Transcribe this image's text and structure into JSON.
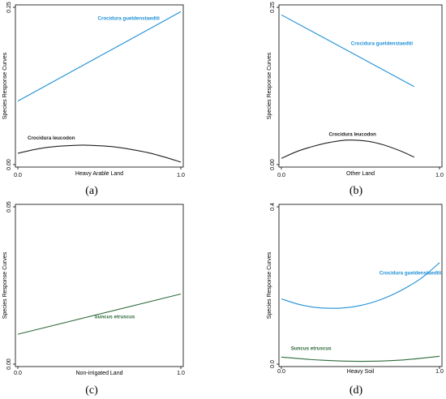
{
  "chart_data": [
    {
      "type": "line",
      "panel_label": "(a)",
      "xlabel": "Heavy Arable Land",
      "ylabel": "Species Response Curves",
      "xlim": [
        0,
        1
      ],
      "ylim": [
        0,
        0.25
      ],
      "x_ticks": [
        "0.0",
        "1.0"
      ],
      "y_ticks": [
        {
          "value": 0,
          "label": "0.00"
        },
        {
          "value": 0.25,
          "label": "0.25"
        }
      ],
      "series": [
        {
          "name": "Crocidura gueldenstaedtii",
          "color": "#1e90d6",
          "x": [
            0,
            0.5,
            1
          ],
          "y": [
            0.101,
            0.172,
            0.243
          ],
          "label_at": {
            "x": 0.49,
            "y": 0.23
          }
        },
        {
          "name": "Crocidura leucodon",
          "color": "#222222",
          "x": [
            0,
            0.1,
            0.2,
            0.3,
            0.4,
            0.5,
            0.6,
            0.7,
            0.8,
            0.9,
            1
          ],
          "y": [
            0.018,
            0.024,
            0.028,
            0.03,
            0.031,
            0.03,
            0.028,
            0.024,
            0.019,
            0.012,
            0.004
          ],
          "label_at": {
            "x": 0.06,
            "y": 0.04
          }
        }
      ]
    },
    {
      "type": "line",
      "panel_label": "(b)",
      "xlabel": "Other Land",
      "ylabel": "Species Response Curves",
      "xlim": [
        0,
        1
      ],
      "ylim": [
        0,
        0.25
      ],
      "x_ticks": [
        "0.0",
        "1.0"
      ],
      "y_ticks": [
        {
          "value": 0,
          "label": "0.00"
        },
        {
          "value": 0.25,
          "label": "0.25"
        }
      ],
      "series": [
        {
          "name": "Crocidura gueldenstaedtii",
          "color": "#1e90d6",
          "x": [
            0,
            0.84
          ],
          "y": [
            0.238,
            0.124
          ],
          "label_at": {
            "x": 0.44,
            "y": 0.19
          }
        },
        {
          "name": "Crocidura leucodon",
          "color": "#222222",
          "x": [
            0,
            0.1,
            0.2,
            0.3,
            0.42,
            0.55,
            0.65,
            0.75,
            0.84
          ],
          "y": [
            0.01,
            0.021,
            0.029,
            0.035,
            0.039,
            0.037,
            0.031,
            0.022,
            0.012
          ],
          "label_at": {
            "x": 0.3,
            "y": 0.046
          }
        }
      ]
    },
    {
      "type": "line",
      "panel_label": "(c)",
      "xlabel": "Non-irrigated Land",
      "ylabel": "Species Response Curves",
      "xlim": [
        0,
        1
      ],
      "ylim": [
        0,
        0.05
      ],
      "x_ticks": [
        "0.0",
        "1.0"
      ],
      "y_ticks": [
        {
          "value": 0,
          "label": "0.00"
        },
        {
          "value": 0.05,
          "label": "0.05"
        }
      ],
      "series": [
        {
          "name": "Suncus etruscus",
          "color": "#2e6b3b",
          "x": [
            0,
            1
          ],
          "y": [
            0.0095,
            0.0223
          ],
          "label_at": {
            "x": 0.47,
            "y": 0.0146
          }
        }
      ]
    },
    {
      "type": "line",
      "panel_label": "(d)",
      "xlabel": "Heavy Soil",
      "ylabel": "Species Response Curves",
      "xlim": [
        0,
        1
      ],
      "ylim": [
        0,
        0.4
      ],
      "x_ticks": [
        "0.0",
        "1.0"
      ],
      "y_ticks": [
        {
          "value": 0,
          "label": "0.0"
        },
        {
          "value": 0.4,
          "label": "0.4"
        }
      ],
      "series": [
        {
          "name": "Crocidura gueldenstaedtii",
          "color": "#1e90d6",
          "x": [
            0,
            0.1,
            0.2,
            0.3,
            0.4,
            0.5,
            0.6,
            0.7,
            0.8,
            0.9,
            1
          ],
          "y": [
            0.166,
            0.153,
            0.145,
            0.142,
            0.143,
            0.149,
            0.16,
            0.176,
            0.197,
            0.223,
            0.258
          ],
          "label_at": {
            "x": 0.62,
            "y": 0.228
          }
        },
        {
          "name": "Suncus etruscus",
          "color": "#2e6b3b",
          "x": [
            0,
            0.25,
            0.5,
            0.75,
            1
          ],
          "y": [
            0.018,
            0.01,
            0.007,
            0.01,
            0.02
          ],
          "label_at": {
            "x": 0.06,
            "y": 0.036
          }
        }
      ]
    }
  ]
}
